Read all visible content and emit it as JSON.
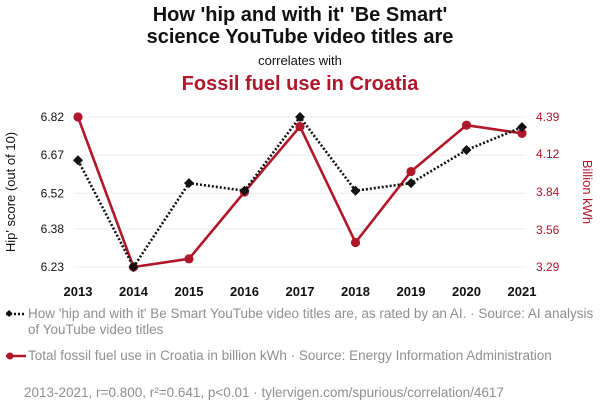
{
  "header": {
    "title": "How 'hip and with it' 'Be Smart'\nscience YouTube video titles are",
    "connector": "correlates with",
    "subtitle": "Fossil fuel use in Croatia"
  },
  "colors": {
    "series1": "#111111",
    "series2": "#b0172b",
    "muted": "#8f8f8f",
    "grid": "#eeeeee"
  },
  "chart_data": {
    "type": "line",
    "x": [
      "2013",
      "2014",
      "2015",
      "2016",
      "2017",
      "2018",
      "2019",
      "2020",
      "2021"
    ],
    "y_left": {
      "label": "Hip' score (out of 10)",
      "ticks": [
        "6.23",
        "6.38",
        "6.52",
        "6.67",
        "6.82"
      ],
      "range": [
        6.23,
        6.82
      ]
    },
    "y_right": {
      "label": "Billion kWh",
      "ticks": [
        "3.29",
        "3.56",
        "3.84",
        "4.12",
        "4.39"
      ],
      "range": [
        3.29,
        4.39
      ]
    },
    "series": [
      {
        "axis": "left",
        "style": "dotted",
        "marker": "diamond",
        "values": [
          6.65,
          6.23,
          6.56,
          6.53,
          6.82,
          6.53,
          6.56,
          6.69,
          6.78
        ]
      },
      {
        "axis": "right",
        "style": "solid",
        "marker": "circle",
        "values": [
          4.39,
          3.29,
          3.35,
          3.84,
          4.32,
          3.47,
          3.99,
          4.33,
          4.27
        ]
      }
    ],
    "grid": true
  },
  "legend": [
    {
      "text": "How 'hip and with it' Be Smart YouTube video titles are, as rated by an AI. · Source: AI analysis of YouTube video titles"
    },
    {
      "text": "Total fossil fuel use in Croatia in billion kWh · Source: Energy Information Administration"
    }
  ],
  "footer": "2013-2021, r=0.800, r²=0.641, p<0.01 · tylervigen.com/spurious/correlation/4617"
}
